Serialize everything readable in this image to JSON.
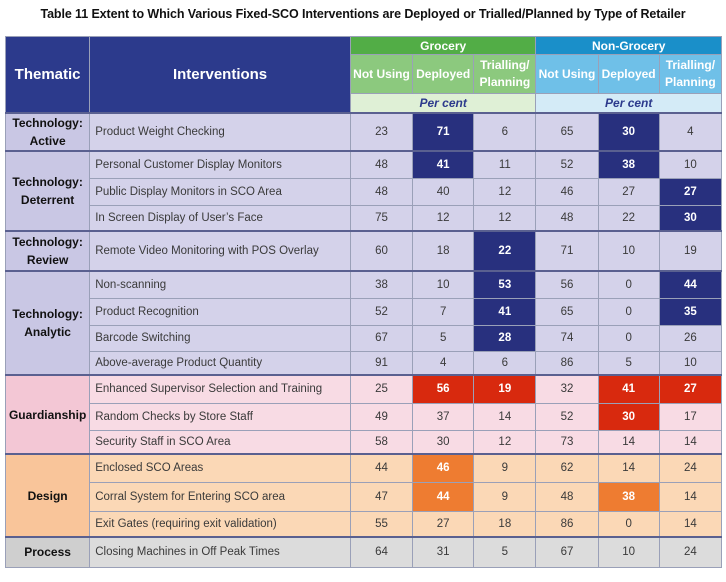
{
  "title": "Table 11 Extent to Which Various Fixed-SCO Interventions are Deployed or Trialled/Planned by Type of Retailer",
  "headers": {
    "thematic": "Thematic",
    "interventions": "Interventions",
    "grocery": "Grocery",
    "non_grocery": "Non-Grocery",
    "not_using": "Not Using",
    "deployed": "Deployed",
    "trialling": "Trialling/ Planning",
    "per_cent": "Per cent"
  },
  "groups": [
    {
      "theme": "Technology: Active",
      "style": "tech",
      "rows": [
        {
          "label": "Product Weight Checking",
          "values": [
            23,
            71,
            6,
            65,
            30,
            4
          ],
          "highlight": [
            1,
            4
          ]
        }
      ]
    },
    {
      "theme": "Technology: Deterrent",
      "style": "tech",
      "rows": [
        {
          "label": "Personal Customer Display Monitors",
          "values": [
            48,
            41,
            11,
            52,
            38,
            10
          ],
          "highlight": [
            1,
            4
          ]
        },
        {
          "label": "Public Display Monitors in SCO Area",
          "values": [
            48,
            40,
            12,
            46,
            27,
            27
          ],
          "highlight": [
            5
          ]
        },
        {
          "label": "In Screen Display of User’s Face",
          "values": [
            75,
            12,
            12,
            48,
            22,
            30
          ],
          "highlight": [
            5
          ]
        }
      ]
    },
    {
      "theme": "Technology: Review",
      "style": "tech",
      "rows": [
        {
          "label": "Remote Video Monitoring with POS Overlay",
          "values": [
            60,
            18,
            22,
            71,
            10,
            19
          ],
          "highlight": [
            2
          ]
        }
      ]
    },
    {
      "theme": "Technology: Analytic",
      "style": "tech",
      "rows": [
        {
          "label": "Non-scanning",
          "values": [
            38,
            10,
            53,
            56,
            0,
            44
          ],
          "highlight": [
            2,
            5
          ]
        },
        {
          "label": "Product Recognition",
          "values": [
            52,
            7,
            41,
            65,
            0,
            35
          ],
          "highlight": [
            2,
            5
          ]
        },
        {
          "label": "Barcode Switching",
          "values": [
            67,
            5,
            28,
            74,
            0,
            26
          ],
          "highlight": [
            2
          ]
        },
        {
          "label": "Above-average Product Quantity",
          "values": [
            91,
            4,
            6,
            86,
            5,
            10
          ],
          "highlight": []
        }
      ]
    },
    {
      "theme": "Guardianship",
      "style": "guard",
      "rows": [
        {
          "label": "Enhanced Supervisor Selection and Training",
          "values": [
            25,
            56,
            19,
            32,
            41,
            27
          ],
          "highlight": [
            1,
            2,
            4,
            5
          ]
        },
        {
          "label": "Random Checks by Store Staff",
          "values": [
            49,
            37,
            14,
            52,
            30,
            17
          ],
          "highlight": [
            4
          ]
        },
        {
          "label": "Security Staff in SCO Area",
          "values": [
            58,
            30,
            12,
            73,
            14,
            14
          ],
          "highlight": []
        }
      ]
    },
    {
      "theme": "Design",
      "style": "design",
      "rows": [
        {
          "label": "Enclosed SCO Areas",
          "values": [
            44,
            46,
            9,
            62,
            14,
            24
          ],
          "highlight": [
            1
          ]
        },
        {
          "label": "Corral System for Entering SCO area",
          "values": [
            47,
            44,
            9,
            48,
            38,
            14
          ],
          "highlight": [
            1,
            4
          ]
        },
        {
          "label": "Exit Gates (requiring exit validation)",
          "values": [
            55,
            27,
            18,
            86,
            0,
            14
          ],
          "highlight": []
        }
      ]
    },
    {
      "theme": "Process",
      "style": "proc",
      "rows": [
        {
          "label": "Closing Machines in Off Peak Times",
          "values": [
            64,
            31,
            5,
            67,
            10,
            24
          ],
          "highlight": []
        }
      ]
    }
  ]
}
